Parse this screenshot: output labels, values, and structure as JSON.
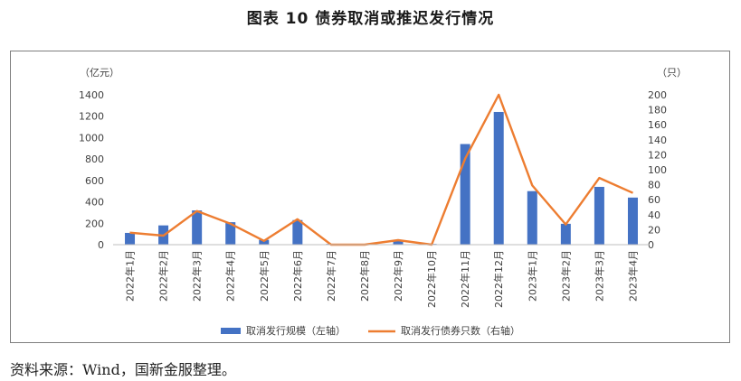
{
  "figure": {
    "title": "图表 10 债券取消或推迟发行情况",
    "source": "资料来源：Wind，国新金服整理。"
  },
  "colors": {
    "bar": "#4472c4",
    "line": "#ed7d31",
    "axis_text": "#404040"
  },
  "chart_data": {
    "type": "bar",
    "categories": [
      "2022年1月",
      "2022年2月",
      "2022年3月",
      "2022年4月",
      "2022年5月",
      "2022年6月",
      "2022年7月",
      "2022年8月",
      "2022年9月",
      "2022年10月",
      "2022年11月",
      "2022年12月",
      "2023年1月",
      "2023年2月",
      "2023年3月",
      "2023年4月"
    ],
    "left_axis_label": "（亿元）",
    "right_axis_label": "（只）",
    "ylim_left": [
      0,
      1400
    ],
    "yticks_left": [
      0,
      200,
      400,
      600,
      800,
      1000,
      1200,
      1400
    ],
    "ylim_right": [
      0,
      200
    ],
    "yticks_right": [
      0,
      20,
      40,
      60,
      80,
      100,
      120,
      140,
      160,
      180,
      200
    ],
    "grid": false,
    "legend_position": "bottom",
    "series": [
      {
        "name": "取消发行规模（左轴）",
        "type": "bar",
        "axis": "left",
        "values": [
          110,
          180,
          320,
          210,
          45,
          230,
          5,
          5,
          40,
          5,
          940,
          1240,
          500,
          195,
          540,
          440
        ]
      },
      {
        "name": "取消发行债券只数（右轴）",
        "type": "line",
        "axis": "right",
        "values": [
          16,
          12,
          45,
          28,
          5,
          34,
          0,
          0,
          6,
          0,
          115,
          200,
          79,
          27,
          89,
          69
        ]
      }
    ]
  }
}
